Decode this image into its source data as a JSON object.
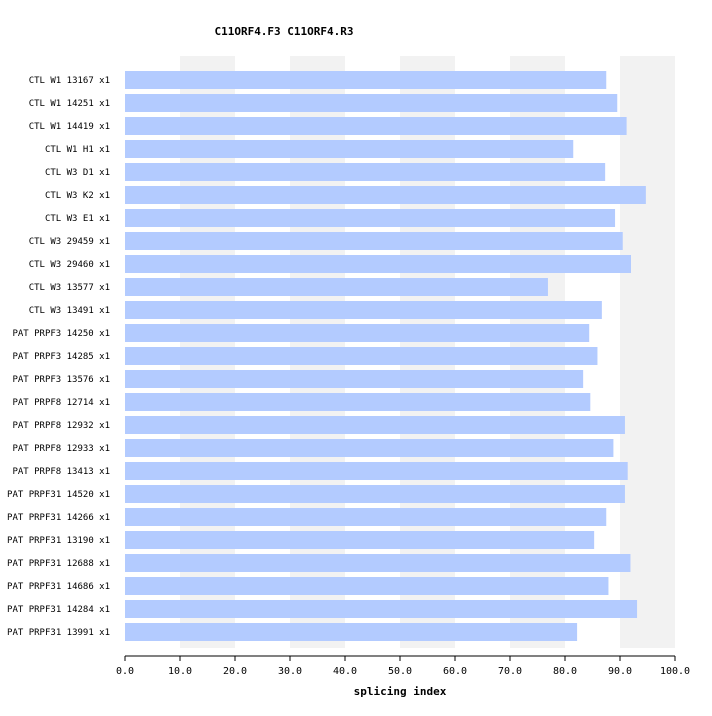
{
  "chart_data": {
    "type": "bar",
    "orientation": "horizontal",
    "title": "C11ORF4.F3  C11ORF4.R3",
    "xlabel": "splicing index",
    "ylabel": "",
    "xlim": [
      0,
      100
    ],
    "xticks": [
      "0.0",
      "10.0",
      "20.0",
      "30.0",
      "40.0",
      "50.0",
      "60.0",
      "70.0",
      "80.0",
      "90.0",
      "100.0"
    ],
    "grid": "alternating vertical bands",
    "categories": [
      "CTL W1 13167 x1",
      "CTL W1 14251 x1",
      "CTL W1 14419 x1",
      "CTL W1 H1 x1",
      "CTL W3 D1 x1",
      "CTL W3 K2 x1",
      "CTL W3 E1 x1",
      "CTL W3 29459 x1",
      "CTL W3 29460 x1",
      "CTL W3 13577 x1",
      "CTL W3 13491 x1",
      "PAT PRPF3 14250 x1",
      "PAT PRPF3 14285 x1",
      "PAT PRPF3 13576 x1",
      "PAT PRPF8 12714 x1",
      "PAT PRPF8 12932 x1",
      "PAT PRPF8 12933 x1",
      "PAT PRPF8 13413 x1",
      "PAT PRPF31 14520 x1",
      "PAT PRPF31 14266 x1",
      "PAT PRPF31 13190 x1",
      "PAT PRPF31 12688 x1",
      "PAT PRPF31 14686 x1",
      "PAT PRPF31 14284 x1",
      "PAT PRPF31 13991 x1"
    ],
    "values": [
      87.5,
      89.5,
      91.2,
      81.5,
      87.3,
      94.7,
      89.1,
      90.5,
      92.0,
      76.9,
      86.7,
      84.4,
      85.9,
      83.3,
      84.6,
      90.9,
      88.8,
      91.4,
      90.9,
      87.5,
      85.3,
      91.9,
      87.9,
      93.1,
      82.2
    ],
    "colors": {
      "bar": "#b3cbff",
      "band": "#f2f2f2",
      "axis": "#000000",
      "background": "#ffffff"
    }
  }
}
